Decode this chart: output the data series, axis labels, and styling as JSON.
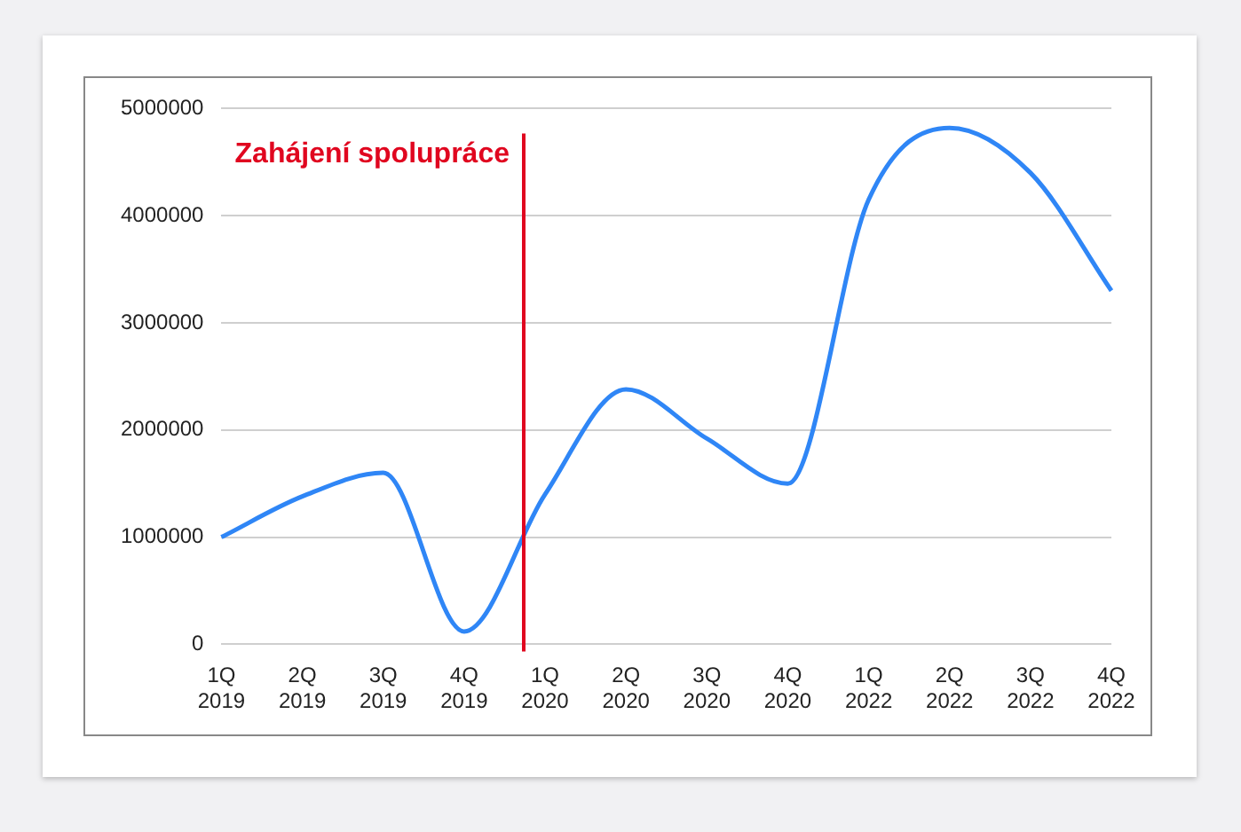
{
  "chart_data": {
    "type": "line",
    "categories": [
      "1Q 2019",
      "2Q 2019",
      "3Q 2019",
      "4Q 2019",
      "1Q 2020",
      "2Q 2020",
      "3Q 2020",
      "4Q 2020",
      "1Q 2022",
      "2Q 2022",
      "3Q 2022",
      "4Q 2022"
    ],
    "series": [
      {
        "color": "#2f86f6",
        "values": [
          1000000,
          1380000,
          1600000,
          120000,
          1400000,
          2380000,
          1920000,
          1500000,
          4150000,
          4820000,
          4400000,
          3300000
        ]
      }
    ],
    "ylim": [
      0,
      5000000
    ],
    "yticks": [
      0,
      1000000,
      2000000,
      3000000,
      4000000,
      5000000
    ],
    "grid": "y",
    "legend": false,
    "marker": "none",
    "line_style": "solid",
    "ref_lines": [
      {
        "axis": "x",
        "value": "1Q 2020",
        "label": "Zahájení spolupráce",
        "color": "#e0061f"
      }
    ]
  }
}
